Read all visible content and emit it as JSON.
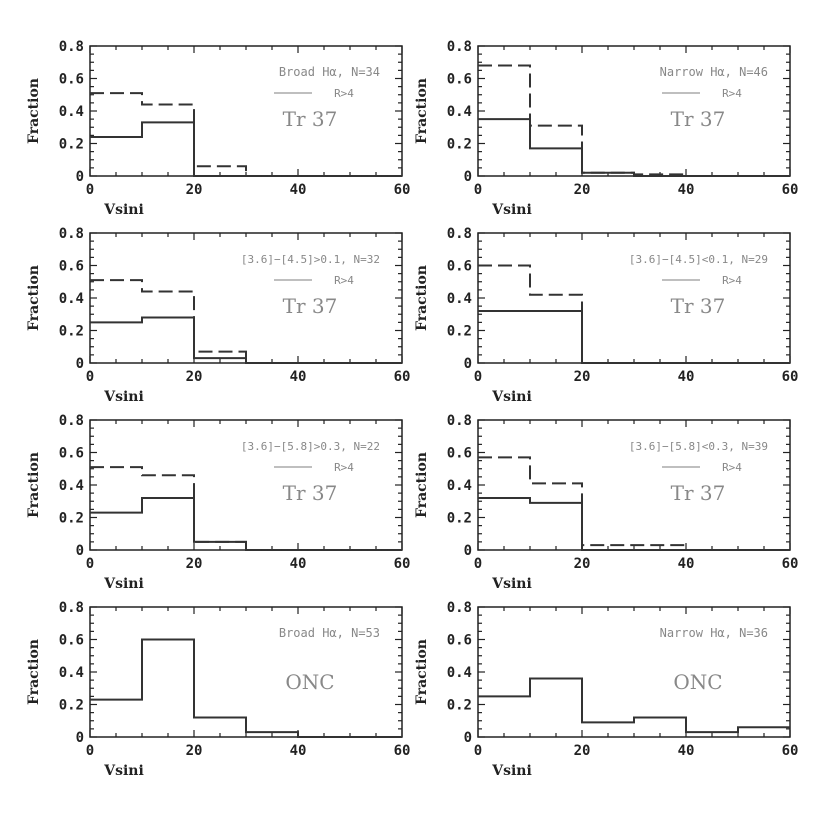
{
  "chart_data": [
    {
      "type": "histogram",
      "title": "",
      "xlabel": "Vsini",
      "ylabel": "Fraction",
      "xlim": [
        0,
        60
      ],
      "ylim": [
        0,
        0.8
      ],
      "xticks": [
        "0",
        "20",
        "40",
        "60"
      ],
      "yticks": [
        "0",
        "0.2",
        "0.4",
        "0.6",
        "0.8"
      ],
      "annotation": "Broad Hα, N=34",
      "legend_label": "R>4",
      "cluster_label": "Tr 37",
      "bin_edges": [
        0,
        10,
        20,
        30,
        40,
        50,
        60
      ],
      "series": [
        {
          "style": "solid",
          "values": [
            0.24,
            0.33,
            0.0,
            0.0,
            0.0,
            0.0
          ]
        },
        {
          "style": "dashed",
          "values": [
            0.51,
            0.44,
            0.06,
            0.0,
            0.0,
            0.0
          ]
        }
      ]
    },
    {
      "type": "histogram",
      "title": "",
      "xlabel": "Vsini",
      "ylabel": "Fraction",
      "xlim": [
        0,
        60
      ],
      "ylim": [
        0,
        0.8
      ],
      "xticks": [
        "0",
        "20",
        "40",
        "60"
      ],
      "yticks": [
        "0",
        "0.2",
        "0.4",
        "0.6",
        "0.8"
      ],
      "annotation": "Narrow Hα, N=46",
      "legend_label": "R>4",
      "cluster_label": "Tr 37",
      "bin_edges": [
        0,
        10,
        20,
        30,
        40,
        50,
        60
      ],
      "series": [
        {
          "style": "solid",
          "values": [
            0.35,
            0.17,
            0.02,
            0.0,
            0.0,
            0.0
          ]
        },
        {
          "style": "dashed",
          "values": [
            0.68,
            0.31,
            0.02,
            0.01,
            0.0,
            0.0
          ]
        }
      ]
    },
    {
      "type": "histogram",
      "title": "",
      "xlabel": "Vsini",
      "ylabel": "Fraction",
      "xlim": [
        0,
        60
      ],
      "ylim": [
        0,
        0.8
      ],
      "xticks": [
        "0",
        "20",
        "40",
        "60"
      ],
      "yticks": [
        "0",
        "0.2",
        "0.4",
        "0.6",
        "0.8"
      ],
      "annotation": "[3.6]−[4.5]>0.1, N=32",
      "legend_label": "R>4",
      "cluster_label": "Tr 37",
      "bin_edges": [
        0,
        10,
        20,
        30,
        40,
        50,
        60
      ],
      "series": [
        {
          "style": "solid",
          "values": [
            0.25,
            0.28,
            0.03,
            0.0,
            0.0,
            0.0
          ]
        },
        {
          "style": "dashed",
          "values": [
            0.51,
            0.44,
            0.07,
            0.0,
            0.0,
            0.0
          ]
        }
      ]
    },
    {
      "type": "histogram",
      "title": "",
      "xlabel": "Vsini",
      "ylabel": "Fraction",
      "xlim": [
        0,
        60
      ],
      "ylim": [
        0,
        0.8
      ],
      "xticks": [
        "0",
        "20",
        "40",
        "60"
      ],
      "yticks": [
        "0",
        "0.2",
        "0.4",
        "0.6",
        "0.8"
      ],
      "annotation": "[3.6]−[4.5]<0.1, N=29",
      "legend_label": "R>4",
      "cluster_label": "Tr 37",
      "bin_edges": [
        0,
        10,
        20,
        30,
        40,
        50,
        60
      ],
      "series": [
        {
          "style": "solid",
          "values": [
            0.32,
            0.32,
            0.0,
            0.0,
            0.0,
            0.0
          ]
        },
        {
          "style": "dashed",
          "values": [
            0.6,
            0.42,
            0.0,
            0.0,
            0.0,
            0.0
          ]
        }
      ]
    },
    {
      "type": "histogram",
      "title": "",
      "xlabel": "Vsini",
      "ylabel": "Fraction",
      "xlim": [
        0,
        60
      ],
      "ylim": [
        0,
        0.8
      ],
      "xticks": [
        "0",
        "20",
        "40",
        "60"
      ],
      "yticks": [
        "0",
        "0.2",
        "0.4",
        "0.6",
        "0.8"
      ],
      "annotation": "[3.6]−[5.8]>0.3, N=22",
      "legend_label": "R>4",
      "cluster_label": "Tr 37",
      "bin_edges": [
        0,
        10,
        20,
        30,
        40,
        50,
        60
      ],
      "series": [
        {
          "style": "solid",
          "values": [
            0.23,
            0.32,
            0.05,
            0.0,
            0.0,
            0.0
          ]
        },
        {
          "style": "dashed",
          "values": [
            0.51,
            0.46,
            0.05,
            0.0,
            0.0,
            0.0
          ]
        }
      ]
    },
    {
      "type": "histogram",
      "title": "",
      "xlabel": "Vsini",
      "ylabel": "Fraction",
      "xlim": [
        0,
        60
      ],
      "ylim": [
        0,
        0.8
      ],
      "xticks": [
        "0",
        "20",
        "40",
        "60"
      ],
      "yticks": [
        "0",
        "0.2",
        "0.4",
        "0.6",
        "0.8"
      ],
      "annotation": "[3.6]−[5.8]<0.3, N=39",
      "legend_label": "R>4",
      "cluster_label": "Tr 37",
      "bin_edges": [
        0,
        10,
        20,
        30,
        40,
        50,
        60
      ],
      "series": [
        {
          "style": "solid",
          "values": [
            0.32,
            0.29,
            0.0,
            0.0,
            0.0,
            0.0
          ]
        },
        {
          "style": "dashed",
          "values": [
            0.57,
            0.41,
            0.03,
            0.03,
            0.0,
            0.0
          ]
        }
      ]
    },
    {
      "type": "histogram",
      "title": "",
      "xlabel": "Vsini",
      "ylabel": "Fraction",
      "xlim": [
        0,
        60
      ],
      "ylim": [
        0,
        0.8
      ],
      "xticks": [
        "0",
        "20",
        "40",
        "60"
      ],
      "yticks": [
        "0",
        "0.2",
        "0.4",
        "0.6",
        "0.8"
      ],
      "annotation": "Broad Hα, N=53",
      "legend_label": "",
      "cluster_label": "ONC",
      "bin_edges": [
        0,
        10,
        20,
        30,
        40,
        50,
        60
      ],
      "series": [
        {
          "style": "solid",
          "values": [
            0.23,
            0.6,
            0.12,
            0.03,
            0.0,
            0.0
          ]
        }
      ]
    },
    {
      "type": "histogram",
      "title": "",
      "xlabel": "Vsini",
      "ylabel": "Fraction",
      "xlim": [
        0,
        60
      ],
      "ylim": [
        0,
        0.8
      ],
      "xticks": [
        "0",
        "20",
        "40",
        "60"
      ],
      "yticks": [
        "0",
        "0.2",
        "0.4",
        "0.6",
        "0.8"
      ],
      "annotation": "Narrow Hα, N=36",
      "legend_label": "",
      "cluster_label": "ONC",
      "bin_edges": [
        0,
        10,
        20,
        30,
        40,
        50,
        60
      ],
      "series": [
        {
          "style": "solid",
          "values": [
            0.25,
            0.36,
            0.09,
            0.12,
            0.03,
            0.06
          ]
        }
      ]
    }
  ]
}
